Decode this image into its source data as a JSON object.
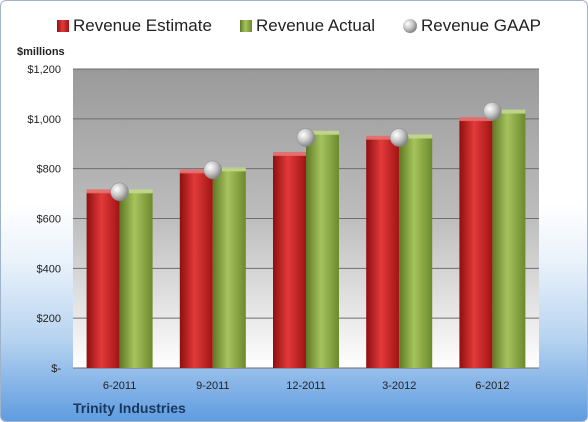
{
  "chart_data": {
    "type": "bar",
    "categories": [
      "6-2011",
      "9-2011",
      "12-2011",
      "3-2012",
      "6-2012"
    ],
    "series": [
      {
        "name": "Revenue Estimate",
        "values": [
          705,
          785,
          855,
          920,
          995
        ],
        "color": "#c81e1e"
      },
      {
        "name": "Revenue Actual",
        "values": [
          705,
          793,
          940,
          925,
          1025
        ],
        "color": "#87a640"
      }
    ],
    "scatter_series": {
      "name": "Revenue GAAP",
      "values": [
        707,
        795,
        925,
        925,
        1030
      ]
    },
    "yunit": "$millions",
    "yticks": [
      "$-",
      "$200",
      "$400",
      "$600",
      "$800",
      "$1,000",
      "$1,200"
    ],
    "ylim": [
      0,
      1200
    ],
    "ytick_step": 200,
    "legend_position": "top",
    "grid": true,
    "footer": "Trinity Industries"
  }
}
